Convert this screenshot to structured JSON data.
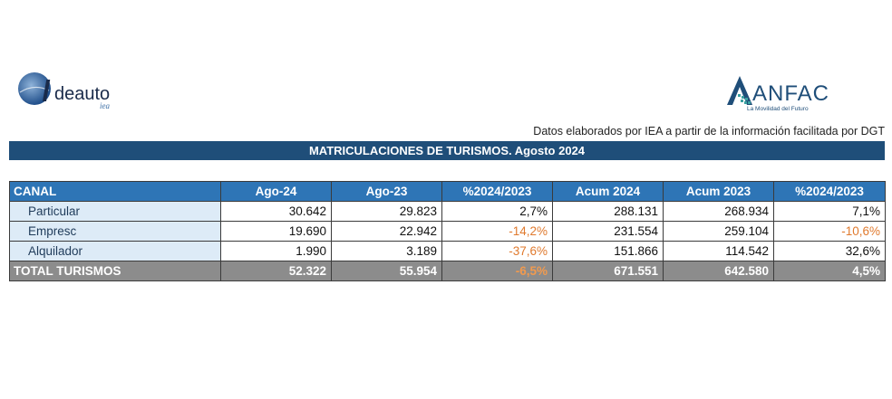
{
  "logos": {
    "left_text": "deauto",
    "left_sub": "iea",
    "right_text": "ANFAC",
    "right_tagline": "La Movilidad del Futuro"
  },
  "source_note": "Datos elaborados por IEA a partir de la información facilitada por DGT",
  "title": "MATRICULACIONES DE TURISMOS. Agosto 2024",
  "table": {
    "headers": [
      "CANAL",
      "Ago-24",
      "Ago-23",
      "%2024/2023",
      "Acum 2024",
      "Acum 2023",
      "%2024/2023"
    ],
    "rows": [
      {
        "canal": "Particular",
        "ago24": "30.642",
        "ago23": "29.823",
        "pct_mes": "2,7%",
        "acum24": "288.131",
        "acum23": "268.934",
        "pct_acum": "7,1%"
      },
      {
        "canal": "Empresc",
        "ago24": "19.690",
        "ago23": "22.942",
        "pct_mes": "-14,2%",
        "acum24": "231.554",
        "acum23": "259.104",
        "pct_acum": "-10,6%"
      },
      {
        "canal": "Alquilador",
        "ago24": "1.990",
        "ago23": "3.189",
        "pct_mes": "-37,6%",
        "acum24": "151.866",
        "acum23": "114.542",
        "pct_acum": "32,6%"
      }
    ],
    "total": {
      "canal": "TOTAL TURISMOS",
      "ago24": "52.322",
      "ago23": "55.954",
      "pct_mes": "-6,5%",
      "acum24": "671.551",
      "acum23": "642.580",
      "pct_acum": "4,5%"
    }
  },
  "colors": {
    "title_bg": "#1f4e79",
    "header_bg": "#2e75b6",
    "canal_bg": "#ddebf7",
    "total_bg": "#8c8c8c",
    "negative": "#e07a2e"
  }
}
